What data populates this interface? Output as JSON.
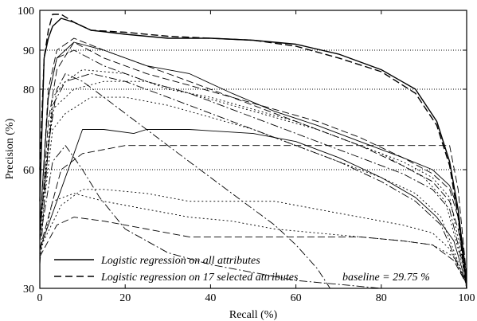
{
  "chart_data": {
    "type": "line",
    "xlabel": "Recall (%)",
    "ylabel": "Precision (%)",
    "xlim": [
      0,
      100
    ],
    "ylim": [
      30,
      100
    ],
    "y_scale": "nonlinear",
    "x_ticks": [
      0,
      20,
      40,
      60,
      80,
      100
    ],
    "y_ticks": [
      30,
      60,
      80,
      90,
      100
    ],
    "y_gridlines": [
      60,
      80,
      90
    ],
    "grid": "horizontal dotted at 60, 80, 90",
    "legend_position": "bottom-left",
    "legend": [
      {
        "label": "Logistic regression on all attributes",
        "style": "solid"
      },
      {
        "label": "Logistic regression on 17 selected attributes",
        "style": "dashed"
      }
    ],
    "annotation": "baseline = 29.75 %",
    "series": [
      {
        "style": "solid",
        "points": [
          [
            0,
            52
          ],
          [
            1,
            88
          ],
          [
            2,
            93
          ],
          [
            3,
            96
          ],
          [
            5,
            98
          ],
          [
            8,
            97
          ],
          [
            12,
            95
          ],
          [
            20,
            94
          ],
          [
            30,
            93
          ],
          [
            40,
            93
          ],
          [
            50,
            92.5
          ],
          [
            60,
            91.5
          ],
          [
            70,
            89
          ],
          [
            80,
            85
          ],
          [
            88,
            80
          ],
          [
            93,
            72
          ],
          [
            96,
            62
          ],
          [
            98,
            50
          ],
          [
            99,
            40
          ],
          [
            100,
            30
          ]
        ]
      },
      {
        "style": "dashed",
        "points": [
          [
            0,
            60
          ],
          [
            1,
            88
          ],
          [
            2,
            95
          ],
          [
            3,
            99
          ],
          [
            5,
            99
          ],
          [
            8,
            97
          ],
          [
            12,
            95
          ],
          [
            20,
            94.5
          ],
          [
            30,
            93.5
          ],
          [
            40,
            93
          ],
          [
            50,
            92.5
          ],
          [
            60,
            91
          ],
          [
            70,
            88
          ],
          [
            80,
            84.5
          ],
          [
            88,
            79
          ],
          [
            93,
            71
          ],
          [
            96,
            61
          ],
          [
            98,
            48
          ],
          [
            99,
            38
          ],
          [
            100,
            30
          ]
        ]
      },
      {
        "style": "solid",
        "points": [
          [
            0,
            46
          ],
          [
            2,
            78
          ],
          [
            4,
            88
          ],
          [
            8,
            92
          ],
          [
            15,
            90
          ],
          [
            25,
            86
          ],
          [
            35,
            84
          ],
          [
            45,
            79
          ],
          [
            55,
            74.5
          ],
          [
            65,
            71
          ],
          [
            75,
            67
          ],
          [
            85,
            63
          ],
          [
            92,
            60
          ],
          [
            96,
            56
          ],
          [
            98,
            50
          ],
          [
            100,
            33
          ]
        ]
      },
      {
        "style": "dashed",
        "points": [
          [
            0,
            45
          ],
          [
            2,
            80
          ],
          [
            4,
            90
          ],
          [
            8,
            93
          ],
          [
            15,
            90
          ],
          [
            25,
            86
          ],
          [
            35,
            82
          ],
          [
            45,
            78
          ],
          [
            55,
            74
          ],
          [
            65,
            70
          ],
          [
            75,
            66
          ],
          [
            85,
            61
          ],
          [
            92,
            57
          ],
          [
            96,
            52
          ],
          [
            98,
            45
          ],
          [
            100,
            33
          ]
        ]
      },
      {
        "style": "solid",
        "points": [
          [
            0,
            40
          ],
          [
            4,
            52
          ],
          [
            8,
            64
          ],
          [
            10,
            70
          ],
          [
            15,
            70
          ],
          [
            22,
            69
          ],
          [
            25,
            70
          ],
          [
            35,
            70
          ],
          [
            50,
            69
          ],
          [
            60,
            67
          ],
          [
            70,
            63
          ],
          [
            80,
            58
          ],
          [
            88,
            53
          ],
          [
            93,
            48
          ],
          [
            97,
            42
          ],
          [
            100,
            31
          ]
        ]
      },
      {
        "style": "dashed",
        "points": [
          [
            0,
            42
          ],
          [
            2,
            72
          ],
          [
            4,
            85
          ],
          [
            8,
            92
          ],
          [
            15,
            88
          ],
          [
            25,
            84
          ],
          [
            35,
            81
          ],
          [
            45,
            78
          ],
          [
            55,
            75
          ],
          [
            65,
            72
          ],
          [
            75,
            68
          ],
          [
            85,
            63
          ],
          [
            92,
            59
          ],
          [
            96,
            55
          ],
          [
            98,
            48
          ],
          [
            100,
            32
          ]
        ]
      },
      {
        "style": "dashed",
        "points": [
          [
            0,
            40
          ],
          [
            5,
            60
          ],
          [
            10,
            64
          ],
          [
            20,
            66
          ],
          [
            30,
            66
          ],
          [
            40,
            66
          ],
          [
            50,
            66
          ],
          [
            60,
            66
          ],
          [
            70,
            66
          ],
          [
            80,
            66
          ],
          [
            90,
            66
          ],
          [
            96,
            66
          ],
          [
            98,
            55
          ],
          [
            100,
            33
          ]
        ]
      },
      {
        "style": "dash-dot",
        "points": [
          [
            0,
            36
          ],
          [
            2,
            66
          ],
          [
            4,
            80
          ],
          [
            6,
            84
          ],
          [
            10,
            82
          ],
          [
            15,
            78
          ],
          [
            25,
            70
          ],
          [
            35,
            62
          ],
          [
            45,
            54
          ],
          [
            55,
            46
          ],
          [
            60,
            41
          ],
          [
            65,
            35
          ],
          [
            68,
            30
          ]
        ]
      },
      {
        "style": "dash-dot",
        "points": [
          [
            0,
            42
          ],
          [
            3,
            62
          ],
          [
            6,
            66
          ],
          [
            10,
            60
          ],
          [
            14,
            53
          ],
          [
            20,
            45
          ],
          [
            30,
            39
          ],
          [
            40,
            36
          ],
          [
            50,
            34
          ],
          [
            60,
            32
          ],
          [
            70,
            31
          ],
          [
            80,
            30
          ]
        ]
      },
      {
        "style": "dash-dot",
        "points": [
          [
            0,
            45
          ],
          [
            2,
            78
          ],
          [
            4,
            88
          ],
          [
            8,
            90
          ],
          [
            15,
            86
          ],
          [
            25,
            82
          ],
          [
            35,
            79
          ],
          [
            45,
            75
          ],
          [
            55,
            71
          ],
          [
            65,
            67
          ],
          [
            75,
            63
          ],
          [
            85,
            59
          ],
          [
            92,
            55
          ],
          [
            96,
            50
          ],
          [
            100,
            32
          ]
        ]
      },
      {
        "style": "dotted",
        "points": [
          [
            0,
            40
          ],
          [
            5,
            51
          ],
          [
            10,
            55
          ],
          [
            15,
            55
          ],
          [
            25,
            54
          ],
          [
            35,
            52
          ],
          [
            45,
            52
          ],
          [
            55,
            52
          ],
          [
            65,
            50
          ],
          [
            75,
            48
          ],
          [
            85,
            46
          ],
          [
            92,
            44
          ],
          [
            96,
            40
          ],
          [
            100,
            31
          ]
        ]
      },
      {
        "style": "dotted",
        "points": [
          [
            0,
            45
          ],
          [
            3,
            78
          ],
          [
            6,
            82
          ],
          [
            10,
            85
          ],
          [
            20,
            84
          ],
          [
            30,
            80
          ],
          [
            40,
            78
          ],
          [
            50,
            75
          ],
          [
            60,
            72
          ],
          [
            70,
            68
          ],
          [
            80,
            64
          ],
          [
            90,
            58
          ],
          [
            95,
            52
          ],
          [
            100,
            32
          ]
        ]
      },
      {
        "style": "dotted",
        "points": [
          [
            0,
            42
          ],
          [
            3,
            70
          ],
          [
            6,
            74
          ],
          [
            12,
            78
          ],
          [
            20,
            78
          ],
          [
            30,
            76
          ],
          [
            40,
            73
          ],
          [
            50,
            70
          ],
          [
            60,
            66
          ],
          [
            70,
            62
          ],
          [
            80,
            58
          ],
          [
            88,
            54
          ],
          [
            94,
            48
          ],
          [
            100,
            31
          ]
        ]
      },
      {
        "style": "dotted",
        "points": [
          [
            0,
            38
          ],
          [
            3,
            52
          ],
          [
            8,
            54
          ],
          [
            15,
            52
          ],
          [
            25,
            50
          ],
          [
            35,
            48
          ],
          [
            45,
            47
          ],
          [
            55,
            45
          ],
          [
            65,
            44
          ],
          [
            75,
            43
          ],
          [
            85,
            42
          ],
          [
            92,
            41
          ],
          [
            97,
            38
          ],
          [
            100,
            31
          ]
        ]
      },
      {
        "style": "dotted",
        "points": [
          [
            0,
            44
          ],
          [
            3,
            75
          ],
          [
            8,
            80
          ],
          [
            15,
            82
          ],
          [
            25,
            82
          ],
          [
            35,
            79
          ],
          [
            45,
            76
          ],
          [
            55,
            73
          ],
          [
            65,
            70
          ],
          [
            75,
            66
          ],
          [
            85,
            62
          ],
          [
            92,
            58
          ],
          [
            96,
            53
          ],
          [
            100,
            32
          ]
        ]
      },
      {
        "style": "dashed",
        "points": [
          [
            0,
            38
          ],
          [
            4,
            46
          ],
          [
            8,
            48
          ],
          [
            15,
            47
          ],
          [
            25,
            45
          ],
          [
            35,
            43
          ],
          [
            45,
            43
          ],
          [
            55,
            43
          ],
          [
            65,
            43
          ],
          [
            75,
            43
          ],
          [
            85,
            42
          ],
          [
            92,
            41
          ],
          [
            97,
            37
          ],
          [
            100,
            31
          ]
        ]
      },
      {
        "style": "dash-dot",
        "points": [
          [
            0,
            44
          ],
          [
            3,
            76
          ],
          [
            6,
            82
          ],
          [
            12,
            84
          ],
          [
            20,
            82
          ],
          [
            30,
            78
          ],
          [
            40,
            74
          ],
          [
            50,
            70
          ],
          [
            60,
            66
          ],
          [
            70,
            62
          ],
          [
            80,
            57
          ],
          [
            88,
            52
          ],
          [
            94,
            46
          ],
          [
            100,
            31
          ]
        ]
      }
    ]
  }
}
